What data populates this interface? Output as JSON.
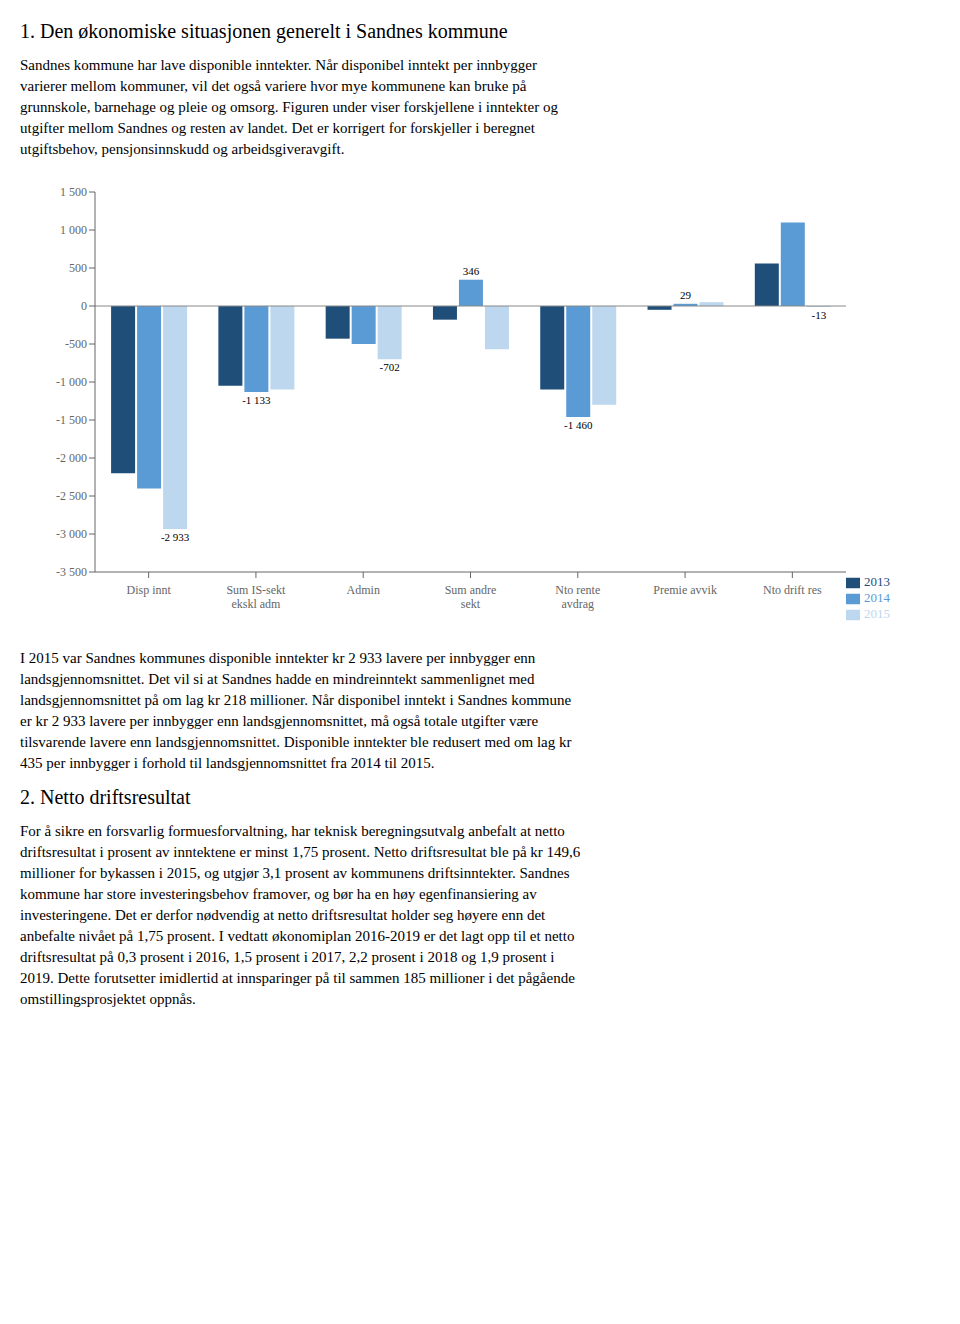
{
  "title1": "1.  Den økonomiske situasjonen generelt i Sandnes kommune",
  "paragraph1": "Sandnes kommune har lave disponible inntekter. Når disponibel inntekt per innbygger\nvarierer mellom kommuner, vil det også variere hvor mye kommunene kan bruke på\ngrunnskole, barnehage og pleie og omsorg. Figuren under viser forskjellene i inntekter og\nutgifter mellom Sandnes og resten av landet. Det er korrigert for forskjeller i beregnet\nutgiftsbehov, pensjonsinnskudd og arbeidsgiveravgift.",
  "paragraph_between": "I 2015 var Sandnes kommunes disponible inntekter kr 2 933 lavere per innbygger enn\nlandsgjennomsnittet. Det vil si at Sandnes hadde en mindreinntekt sammenlignet med\nlandsgjennomsnittet på om lag kr 218 millioner. Når disponibel inntekt i Sandnes kommune\ner kr 2 933 lavere per innbygger enn landsgjennomsnittet, må også totale utgifter være\ntilsvarende lavere enn landsgjennomsnittet. Disponible inntekter ble redusert med om lag kr\n435 per innbygger i forhold til landsgjennomsnittet fra 2014 til 2015.",
  "title2": "2.  Netto driftsresultat",
  "paragraph2": "For å sikre en forsvarlig formuesforvaltning, har teknisk beregningsutvalg anbefalt at netto\ndriftsresultat i prosent av inntektene er minst 1,75 prosent. Netto driftsresultat ble på kr 149,6\nmillioner for bykassen i 2015, og utgjør 3,1 prosent av kommunens driftsinntekter. Sandnes\nkommune har store investeringsbehov framover, og bør ha en høy egenfinansiering av\ninvesteringene. Det er derfor nødvendig at netto driftsresultat holder seg høyere enn det\nanbefalte nivået på 1,75 prosent. I vedtatt økonomiplan 2016-2019 er det lagt opp til et netto\ndriftsresultat på 0,3 prosent i 2016, 1,5 prosent i 2017, 2,2 prosent i 2018 og 1,9 prosent i\n2019. Dette forutsetter imidlertid at innsparinger på til sammen 185 millioner i det pågående\nomstillingsprosjektet oppnås.",
  "chart_data": {
    "type": "bar",
    "categories": [
      "Disp innt",
      "Sum IS-sekt\nekskl adm",
      "Admin",
      "Sum andre\nsekt",
      "Nto rente\navdrag",
      "Premie avvik",
      "Nto drift res"
    ],
    "series": [
      {
        "name": "2013",
        "color": "#1F4E79",
        "values": [
          -2200,
          -1050,
          -430,
          -180,
          -1100,
          -50,
          560
        ]
      },
      {
        "name": "2014",
        "color": "#5B9BD5",
        "values": [
          -2400,
          -1133,
          -500,
          346,
          -1460,
          29,
          1100
        ],
        "value_labels": [
          null,
          "-1 133",
          null,
          "346",
          "-1 460",
          "29",
          null
        ]
      },
      {
        "name": "2015",
        "color": "#BDD7EE",
        "values": [
          -2933,
          -1100,
          -702,
          -570,
          -1300,
          50,
          -13
        ],
        "value_labels": [
          "-2 933",
          null,
          "-702",
          null,
          null,
          null,
          "-13"
        ]
      }
    ],
    "ylim": [
      -3500,
      1500
    ],
    "yticks": [
      {
        "value": -3500,
        "label": "-3 500"
      },
      {
        "value": -3000,
        "label": "-3 000"
      },
      {
        "value": -2500,
        "label": "-2 500"
      },
      {
        "value": -2000,
        "label": "-2 000"
      },
      {
        "value": -1500,
        "label": "-1 500"
      },
      {
        "value": -1000,
        "label": "-1 000"
      },
      -500,
      0,
      500,
      {
        "value": 1000,
        "label": "1 000"
      },
      {
        "value": 1500,
        "label": "1 500"
      }
    ],
    "legend": "lower right",
    "grid": false
  }
}
